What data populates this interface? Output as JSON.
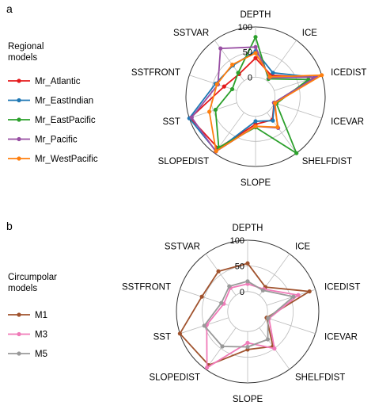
{
  "chart_data": [
    {
      "type": "radar",
      "panel_label": "a",
      "axes": [
        "DEPTH",
        "ICE",
        "ICEDIST",
        "ICEVAR",
        "SHELFDIST",
        "SLOPE",
        "SLOPEDIST",
        "SST",
        "SSTFRONT",
        "SSTVAR"
      ],
      "tick_labels": [
        "0",
        "50",
        "100"
      ],
      "ylim": [
        0,
        100
      ],
      "grid": true,
      "legend": {
        "title": "Regional\nmodels",
        "position": "left",
        "entries": [
          "Mr_Atlantic",
          "Mr_EastIndian",
          "Mr_EastPacific",
          "Mr_Pacific",
          "Mr_WestPacific"
        ]
      },
      "series": [
        {
          "name": "Mr_Atlantic",
          "color": "#e41a1c",
          "values": [
            38,
            14,
            85,
            0,
            18,
            16,
            88,
            98,
            27,
            17
          ]
        },
        {
          "name": "Mr_EastIndian",
          "color": "#1f78b4",
          "values": [
            52,
            20,
            86,
            0,
            20,
            10,
            95,
            100,
            45,
            38
          ]
        },
        {
          "name": "Mr_EastPacific",
          "color": "#2ca02c",
          "values": [
            80,
            5,
            72,
            5,
            100,
            22,
            86,
            45,
            10,
            20
          ]
        },
        {
          "name": "Mr_Pacific",
          "color": "#984ea3",
          "values": [
            60,
            8,
            88,
            0,
            38,
            20,
            96,
            95,
            40,
            80
          ]
        },
        {
          "name": "Mr_WestPacific",
          "color": "#ff7f0e",
          "values": [
            48,
            10,
            100,
            2,
            36,
            20,
            95,
            58,
            42,
            40
          ]
        }
      ]
    },
    {
      "type": "radar",
      "panel_label": "b",
      "axes": [
        "DEPTH",
        "ICE",
        "ICEDIST",
        "ICEVAR",
        "SHELFDIST",
        "SLOPE",
        "SLOPEDIST",
        "SST",
        "SSTFRONT",
        "SSTVAR"
      ],
      "tick_labels": [
        "0",
        "50",
        "100"
      ],
      "ylim": [
        0,
        100
      ],
      "grid": true,
      "legend": {
        "title": "Circumpolar\nmodels",
        "position": "left",
        "entries": [
          "M1",
          "M3",
          "M5"
        ]
      },
      "series": [
        {
          "name": "M1",
          "color": "#a0522d",
          "values": [
            55,
            20,
            88,
            0,
            45,
            35,
            90,
            100,
            55,
            58
          ]
        },
        {
          "name": "M3",
          "color": "#f07ab8",
          "values": [
            15,
            15,
            65,
            5,
            50,
            22,
            96,
            45,
            10,
            18
          ]
        },
        {
          "name": "M5",
          "color": "#999999",
          "values": [
            20,
            12,
            55,
            3,
            28,
            30,
            45,
            50,
            15,
            22
          ]
        }
      ]
    }
  ]
}
